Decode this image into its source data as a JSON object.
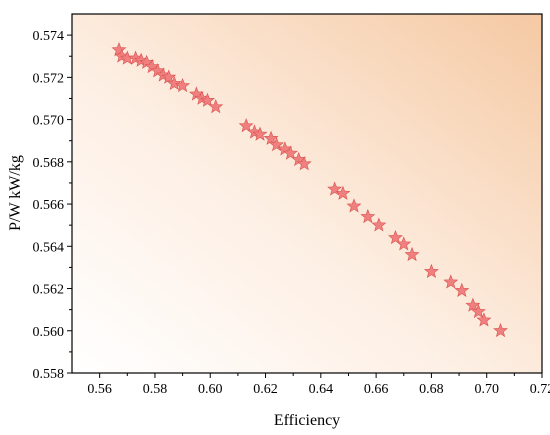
{
  "chart_data": {
    "type": "scatter",
    "title": "",
    "xlabel": "Efficiency",
    "ylabel": "P/W kW/kg",
    "xlim": [
      0.55,
      0.72
    ],
    "ylim": [
      0.558,
      0.575
    ],
    "xticks": [
      "0.56",
      "0.58",
      "0.60",
      "0.62",
      "0.64",
      "0.66",
      "0.68",
      "0.70",
      "0.72"
    ],
    "yticks": [
      "0.558",
      "0.560",
      "0.562",
      "0.564",
      "0.566",
      "0.568",
      "0.570",
      "0.572",
      "0.574"
    ],
    "grid": false,
    "legend": "none",
    "marker": "star",
    "colors": {
      "marker_fill": "#f08080",
      "marker_stroke": "#d9534f",
      "background_light": "#ffffff",
      "background_dark": "#f5c9a3"
    },
    "series": [
      {
        "x": [
          0.567,
          0.568,
          0.57,
          0.573,
          0.575,
          0.577,
          0.579,
          0.581,
          0.583,
          0.585,
          0.587,
          0.59,
          0.595,
          0.597,
          0.599,
          0.602,
          0.613,
          0.616,
          0.618,
          0.622,
          0.624,
          0.627,
          0.629,
          0.632,
          0.634,
          0.645,
          0.648,
          0.652,
          0.657,
          0.661,
          0.667,
          0.67,
          0.673,
          0.68,
          0.687,
          0.691,
          0.695,
          0.697,
          0.699,
          0.705
        ],
        "y": [
          0.5733,
          0.573,
          0.5729,
          0.5729,
          0.5728,
          0.5727,
          0.5725,
          0.5723,
          0.5721,
          0.572,
          0.5717,
          0.5716,
          0.5712,
          0.571,
          0.5709,
          0.5706,
          0.5697,
          0.5694,
          0.5693,
          0.5691,
          0.5688,
          0.5686,
          0.5684,
          0.5681,
          0.5679,
          0.5667,
          0.5665,
          0.5659,
          0.5654,
          0.565,
          0.5644,
          0.5641,
          0.5636,
          0.5628,
          0.5623,
          0.5619,
          0.5612,
          0.5609,
          0.5605,
          0.56
        ]
      }
    ]
  }
}
